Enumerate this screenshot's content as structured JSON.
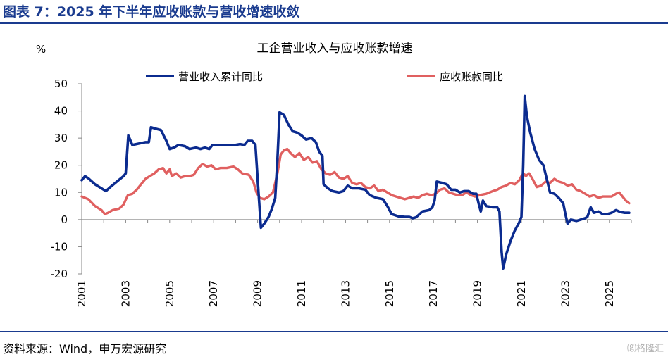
{
  "figure": {
    "title": "图表 7：2025 年下半年应收账款与营收增速收敛",
    "source": "资料来源：Wind，申万宏源研究",
    "watermark": "⒢格隆汇"
  },
  "chart_data": {
    "type": "line",
    "title": "工企营业收入与应收账款增速",
    "ylabel": "%",
    "xlabel": "",
    "ylim": [
      -20,
      50
    ],
    "yticks": [
      50,
      40,
      30,
      20,
      10,
      0,
      -10,
      -20
    ],
    "xlim": [
      2001,
      2026
    ],
    "xticks": [
      "2001",
      "2003",
      "2005",
      "2007",
      "2009",
      "2011",
      "2013",
      "2015",
      "2017",
      "2019",
      "2021",
      "2023",
      "2025"
    ],
    "legend_position": "top",
    "grid": false,
    "series": [
      {
        "name": "营业收入累计同比",
        "color": "#0b2b8f",
        "points": [
          [
            2001.0,
            14.5
          ],
          [
            2001.15,
            16
          ],
          [
            2001.3,
            15.2
          ],
          [
            2001.6,
            13
          ],
          [
            2001.9,
            11.5
          ],
          [
            2002.1,
            10.5
          ],
          [
            2002.3,
            12
          ],
          [
            2002.6,
            14
          ],
          [
            2002.9,
            16
          ],
          [
            2003.0,
            17
          ],
          [
            2003.12,
            31
          ],
          [
            2003.3,
            27.5
          ],
          [
            2003.6,
            28
          ],
          [
            2003.9,
            28.5
          ],
          [
            2004.05,
            28.5
          ],
          [
            2004.15,
            34
          ],
          [
            2004.35,
            33.5
          ],
          [
            2004.6,
            33
          ],
          [
            2004.85,
            29
          ],
          [
            2005.0,
            26
          ],
          [
            2005.2,
            26.5
          ],
          [
            2005.4,
            27.5
          ],
          [
            2005.7,
            27
          ],
          [
            2005.9,
            26
          ],
          [
            2006.2,
            26.5
          ],
          [
            2006.4,
            26
          ],
          [
            2006.6,
            26.5
          ],
          [
            2006.8,
            26
          ],
          [
            2006.95,
            27.5
          ],
          [
            2007.3,
            27.5
          ],
          [
            2007.7,
            27.5
          ],
          [
            2008.0,
            27.5
          ],
          [
            2008.2,
            27.8
          ],
          [
            2008.4,
            27.5
          ],
          [
            2008.55,
            29
          ],
          [
            2008.75,
            29
          ],
          [
            2008.9,
            27.5
          ],
          [
            2009.0,
            15
          ],
          [
            2009.1,
            3
          ],
          [
            2009.15,
            -3
          ],
          [
            2009.3,
            -1.5
          ],
          [
            2009.5,
            1
          ],
          [
            2009.65,
            4
          ],
          [
            2009.8,
            8
          ],
          [
            2009.9,
            22
          ],
          [
            2010.0,
            39.5
          ],
          [
            2010.2,
            38.5
          ],
          [
            2010.4,
            35
          ],
          [
            2010.6,
            32.5
          ],
          [
            2010.8,
            32
          ],
          [
            2011.0,
            31
          ],
          [
            2011.2,
            29.5
          ],
          [
            2011.45,
            30
          ],
          [
            2011.65,
            28.5
          ],
          [
            2011.8,
            25
          ],
          [
            2011.95,
            23.5
          ],
          [
            2012.0,
            13
          ],
          [
            2012.2,
            11.5
          ],
          [
            2012.4,
            10.5
          ],
          [
            2012.7,
            10
          ],
          [
            2012.9,
            10.5
          ],
          [
            2013.1,
            12.5
          ],
          [
            2013.3,
            11.5
          ],
          [
            2013.6,
            11.5
          ],
          [
            2013.9,
            11
          ],
          [
            2014.1,
            9
          ],
          [
            2014.4,
            8
          ],
          [
            2014.7,
            7.5
          ],
          [
            2014.9,
            5
          ],
          [
            2015.1,
            2
          ],
          [
            2015.4,
            1.2
          ],
          [
            2015.7,
            1
          ],
          [
            2015.9,
            1
          ],
          [
            2016.05,
            0.5
          ],
          [
            2016.2,
            0.8
          ],
          [
            2016.5,
            3
          ],
          [
            2016.8,
            3.5
          ],
          [
            2016.95,
            4.5
          ],
          [
            2017.05,
            7
          ],
          [
            2017.15,
            14
          ],
          [
            2017.4,
            13.5
          ],
          [
            2017.6,
            13
          ],
          [
            2017.8,
            11
          ],
          [
            2018.0,
            11
          ],
          [
            2018.2,
            10
          ],
          [
            2018.4,
            10.5
          ],
          [
            2018.6,
            10.5
          ],
          [
            2018.8,
            9.5
          ],
          [
            2018.95,
            9.5
          ],
          [
            2019.05,
            6
          ],
          [
            2019.15,
            3
          ],
          [
            2019.25,
            7
          ],
          [
            2019.4,
            5
          ],
          [
            2019.7,
            4.5
          ],
          [
            2019.9,
            4.5
          ],
          [
            2020.0,
            3
          ],
          [
            2020.1,
            -12
          ],
          [
            2020.17,
            -18
          ],
          [
            2020.3,
            -13
          ],
          [
            2020.5,
            -8
          ],
          [
            2020.7,
            -4
          ],
          [
            2020.9,
            -1
          ],
          [
            2021.0,
            1
          ],
          [
            2021.08,
            20
          ],
          [
            2021.15,
            45.5
          ],
          [
            2021.25,
            38
          ],
          [
            2021.4,
            32
          ],
          [
            2021.6,
            26
          ],
          [
            2021.8,
            22
          ],
          [
            2022.0,
            20
          ],
          [
            2022.15,
            15
          ],
          [
            2022.3,
            10
          ],
          [
            2022.5,
            9.5
          ],
          [
            2022.7,
            8
          ],
          [
            2022.9,
            6
          ],
          [
            2023.0,
            2
          ],
          [
            2023.1,
            -1.5
          ],
          [
            2023.25,
            0
          ],
          [
            2023.5,
            -0.5
          ],
          [
            2023.7,
            0
          ],
          [
            2023.9,
            0.5
          ],
          [
            2024.0,
            1
          ],
          [
            2024.15,
            4.5
          ],
          [
            2024.3,
            2.5
          ],
          [
            2024.5,
            3
          ],
          [
            2024.7,
            2
          ],
          [
            2024.9,
            2
          ],
          [
            2025.1,
            2.5
          ],
          [
            2025.3,
            3.5
          ],
          [
            2025.5,
            2.8
          ],
          [
            2025.7,
            2.5
          ],
          [
            2025.9,
            2.5
          ]
        ]
      },
      {
        "name": "应收账款同比",
        "color": "#e06060",
        "points": [
          [
            2001.0,
            8.5
          ],
          [
            2001.3,
            7.5
          ],
          [
            2001.6,
            5
          ],
          [
            2001.9,
            3.5
          ],
          [
            2002.05,
            2
          ],
          [
            2002.2,
            2.5
          ],
          [
            2002.4,
            3.5
          ],
          [
            2002.7,
            4
          ],
          [
            2002.9,
            5.5
          ],
          [
            2003.1,
            9
          ],
          [
            2003.3,
            9.5
          ],
          [
            2003.5,
            11
          ],
          [
            2003.7,
            13
          ],
          [
            2003.9,
            15
          ],
          [
            2004.1,
            16
          ],
          [
            2004.3,
            17
          ],
          [
            2004.5,
            18.5
          ],
          [
            2004.7,
            19
          ],
          [
            2004.85,
            17
          ],
          [
            2005.0,
            18.5
          ],
          [
            2005.1,
            16
          ],
          [
            2005.3,
            17
          ],
          [
            2005.5,
            15.5
          ],
          [
            2005.7,
            16
          ],
          [
            2005.9,
            16
          ],
          [
            2006.1,
            16.5
          ],
          [
            2006.3,
            19
          ],
          [
            2006.5,
            20.5
          ],
          [
            2006.7,
            19.5
          ],
          [
            2006.9,
            20
          ],
          [
            2007.1,
            18.5
          ],
          [
            2007.3,
            19
          ],
          [
            2007.6,
            19
          ],
          [
            2007.9,
            19.5
          ],
          [
            2008.1,
            18.5
          ],
          [
            2008.3,
            17
          ],
          [
            2008.6,
            16.5
          ],
          [
            2008.8,
            14
          ],
          [
            2008.95,
            10
          ],
          [
            2009.1,
            8
          ],
          [
            2009.3,
            7.5
          ],
          [
            2009.5,
            8.5
          ],
          [
            2009.7,
            10
          ],
          [
            2009.9,
            17
          ],
          [
            2010.05,
            24
          ],
          [
            2010.2,
            25.5
          ],
          [
            2010.35,
            26
          ],
          [
            2010.5,
            24.5
          ],
          [
            2010.7,
            23
          ],
          [
            2010.9,
            24.5
          ],
          [
            2011.1,
            22
          ],
          [
            2011.3,
            23
          ],
          [
            2011.5,
            21
          ],
          [
            2011.7,
            21.5
          ],
          [
            2011.9,
            18.5
          ],
          [
            2012.1,
            17
          ],
          [
            2012.3,
            16.5
          ],
          [
            2012.5,
            17.5
          ],
          [
            2012.7,
            15.5
          ],
          [
            2012.9,
            15
          ],
          [
            2013.1,
            16
          ],
          [
            2013.3,
            13.5
          ],
          [
            2013.5,
            13
          ],
          [
            2013.7,
            13.5
          ],
          [
            2013.9,
            12
          ],
          [
            2014.1,
            11.5
          ],
          [
            2014.3,
            12.5
          ],
          [
            2014.5,
            10.5
          ],
          [
            2014.7,
            11
          ],
          [
            2014.9,
            10
          ],
          [
            2015.1,
            9
          ],
          [
            2015.3,
            8.5
          ],
          [
            2015.5,
            8
          ],
          [
            2015.7,
            7.5
          ],
          [
            2015.9,
            8
          ],
          [
            2016.1,
            8.5
          ],
          [
            2016.3,
            8
          ],
          [
            2016.5,
            9
          ],
          [
            2016.7,
            9.5
          ],
          [
            2016.9,
            9
          ],
          [
            2017.1,
            9.5
          ],
          [
            2017.3,
            11
          ],
          [
            2017.5,
            11.5
          ],
          [
            2017.7,
            10
          ],
          [
            2017.9,
            9.5
          ],
          [
            2018.1,
            9
          ],
          [
            2018.3,
            9
          ],
          [
            2018.5,
            10
          ],
          [
            2018.7,
            9
          ],
          [
            2018.9,
            8.5
          ],
          [
            2019.1,
            9
          ],
          [
            2019.4,
            9.5
          ],
          [
            2019.7,
            10.5
          ],
          [
            2019.9,
            11
          ],
          [
            2020.1,
            12
          ],
          [
            2020.3,
            12.5
          ],
          [
            2020.5,
            13.5
          ],
          [
            2020.7,
            13
          ],
          [
            2020.9,
            14.5
          ],
          [
            2021.0,
            16
          ],
          [
            2021.1,
            17
          ],
          [
            2021.2,
            16
          ],
          [
            2021.35,
            17
          ],
          [
            2021.5,
            15
          ],
          [
            2021.7,
            12
          ],
          [
            2021.9,
            12.5
          ],
          [
            2022.1,
            14
          ],
          [
            2022.3,
            13.5
          ],
          [
            2022.5,
            15
          ],
          [
            2022.7,
            14
          ],
          [
            2022.9,
            13.5
          ],
          [
            2023.1,
            12.5
          ],
          [
            2023.3,
            13
          ],
          [
            2023.5,
            11
          ],
          [
            2023.7,
            10.5
          ],
          [
            2023.9,
            9.5
          ],
          [
            2024.1,
            8.5
          ],
          [
            2024.3,
            9
          ],
          [
            2024.5,
            8
          ],
          [
            2024.7,
            8.5
          ],
          [
            2024.9,
            8.5
          ],
          [
            2025.1,
            8.5
          ],
          [
            2025.3,
            9.5
          ],
          [
            2025.45,
            10
          ],
          [
            2025.6,
            8.5
          ],
          [
            2025.75,
            7
          ],
          [
            2025.9,
            6
          ]
        ]
      }
    ]
  }
}
